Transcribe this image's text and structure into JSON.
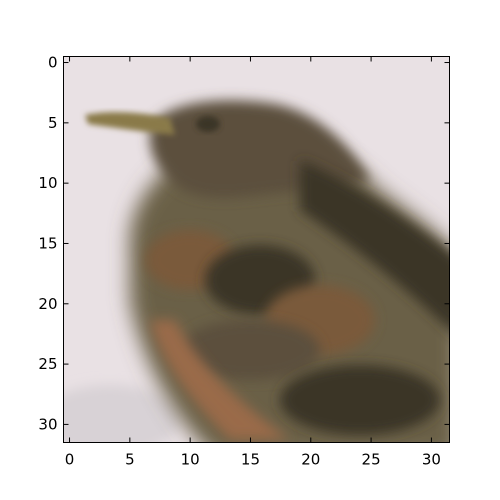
{
  "image": {
    "subject": "bird-head-closeup",
    "grid_size": [
      32,
      32
    ],
    "palette": {
      "background": "#e9e1e4",
      "background_shadow": "#d8d2d6",
      "bird_dark": "#3a3426",
      "bird_mid": "#5b503c",
      "bird_olive": "#6b6147",
      "bird_brown": "#7a5a3a",
      "bird_rufous": "#9a6a4a",
      "beak": "#8a7a4a"
    }
  },
  "axes": {
    "xlim": [
      -0.5,
      31.5
    ],
    "ylim": [
      31.5,
      -0.5
    ],
    "x_ticks": [
      0,
      5,
      10,
      15,
      20,
      25,
      30
    ],
    "y_ticks": [
      0,
      5,
      10,
      15,
      20,
      25,
      30
    ],
    "x_tick_labels": [
      "0",
      "5",
      "10",
      "15",
      "20",
      "25",
      "30"
    ],
    "y_tick_labels": [
      "0",
      "5",
      "10",
      "15",
      "20",
      "25",
      "30"
    ]
  }
}
